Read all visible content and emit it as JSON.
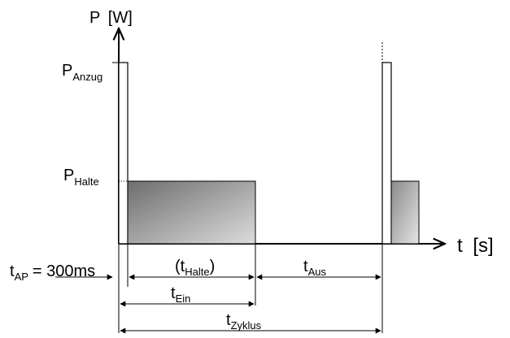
{
  "diagram": {
    "y_axis": {
      "symbol": "P",
      "unit": "[W]"
    },
    "x_axis": {
      "symbol": "t",
      "unit": "[s]"
    },
    "levels": {
      "anzug": {
        "main": "P",
        "sub": "Anzug"
      },
      "halte": {
        "main": "P",
        "sub": "Halte"
      }
    },
    "intervals": {
      "t_halte": {
        "open": "(t",
        "sub": "Halte",
        "close": ")"
      },
      "t_aus": {
        "main": "t",
        "sub": "Aus"
      },
      "t_ein": {
        "main": "t",
        "sub": "Ein"
      },
      "t_zyklus": {
        "main": "t",
        "sub": "Zyklus"
      }
    },
    "t_ap": {
      "main": "t",
      "sub": "AP",
      "value": "= 300ms"
    },
    "colors": {
      "line": "#000000",
      "fill_dark": "#6e6e6e",
      "fill_light": "#dcdcdc",
      "fill_small_dark": "#8a8a8a",
      "fill_small_light": "#e4e4e4"
    }
  }
}
